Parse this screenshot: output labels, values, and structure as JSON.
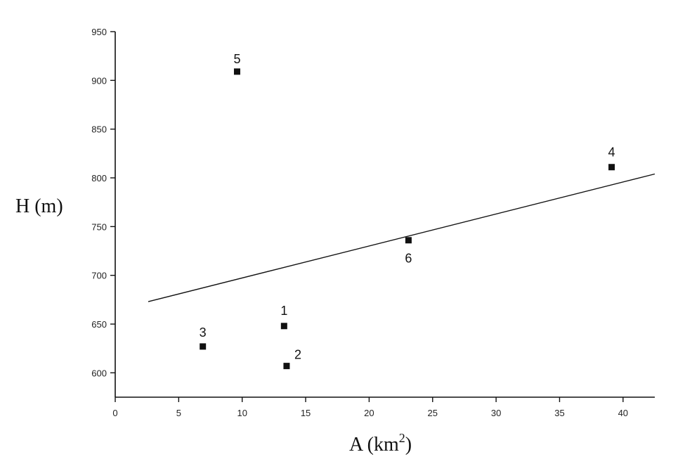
{
  "chart_data": {
    "type": "scatter",
    "title": "",
    "xlabel": "A (km",
    "xlabel_superscript": "2",
    "xlabel_close": ")",
    "ylabel": "H (m)",
    "xlim": [
      0,
      42.5
    ],
    "ylim": [
      575,
      950
    ],
    "x_ticks": [
      0,
      5,
      10,
      15,
      20,
      25,
      30,
      35,
      40
    ],
    "x_tick_labels": [
      "0",
      "5",
      "10",
      "15",
      "20",
      "25",
      "30",
      "35",
      "40"
    ],
    "y_ticks": [
      600,
      650,
      700,
      750,
      800,
      850,
      900,
      950
    ],
    "y_tick_labels": [
      "600",
      "650",
      "700",
      "750",
      "800",
      "850",
      "900",
      "950"
    ],
    "grid": false,
    "points": [
      {
        "label": "1",
        "x": 13.3,
        "y": 648
      },
      {
        "label": "2",
        "x": 13.5,
        "y": 607
      },
      {
        "label": "3",
        "x": 6.9,
        "y": 627
      },
      {
        "label": "4",
        "x": 39.1,
        "y": 811
      },
      {
        "label": "5",
        "x": 9.6,
        "y": 909
      },
      {
        "label": "6",
        "x": 23.1,
        "y": 736
      }
    ],
    "trend_line": {
      "x": [
        2.6,
        42.5
      ],
      "y": [
        673,
        804
      ]
    }
  }
}
